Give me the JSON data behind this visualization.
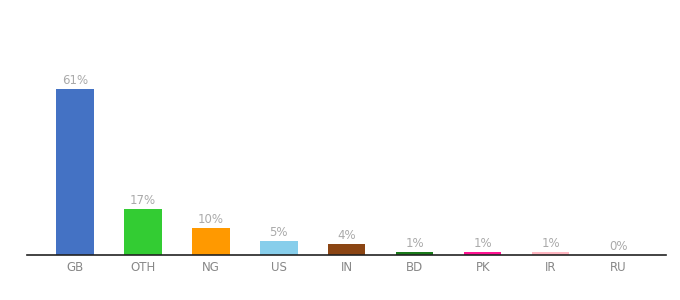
{
  "categories": [
    "GB",
    "OTH",
    "NG",
    "US",
    "IN",
    "BD",
    "PK",
    "IR",
    "RU"
  ],
  "values": [
    61,
    17,
    10,
    5,
    4,
    1,
    1,
    1,
    0
  ],
  "labels": [
    "61%",
    "17%",
    "10%",
    "5%",
    "4%",
    "1%",
    "1%",
    "1%",
    "0%"
  ],
  "colors": [
    "#4472c4",
    "#33cc33",
    "#ff9900",
    "#87ceeb",
    "#8b4513",
    "#1a7a1a",
    "#ff1493",
    "#ffb6c1",
    "#d3d3d3"
  ],
  "background_color": "#ffffff",
  "label_fontsize": 8.5,
  "tick_fontsize": 8.5,
  "bar_width": 0.55,
  "ylim": [
    0,
    85
  ],
  "label_color": "#aaaaaa",
  "tick_color": "#888888"
}
